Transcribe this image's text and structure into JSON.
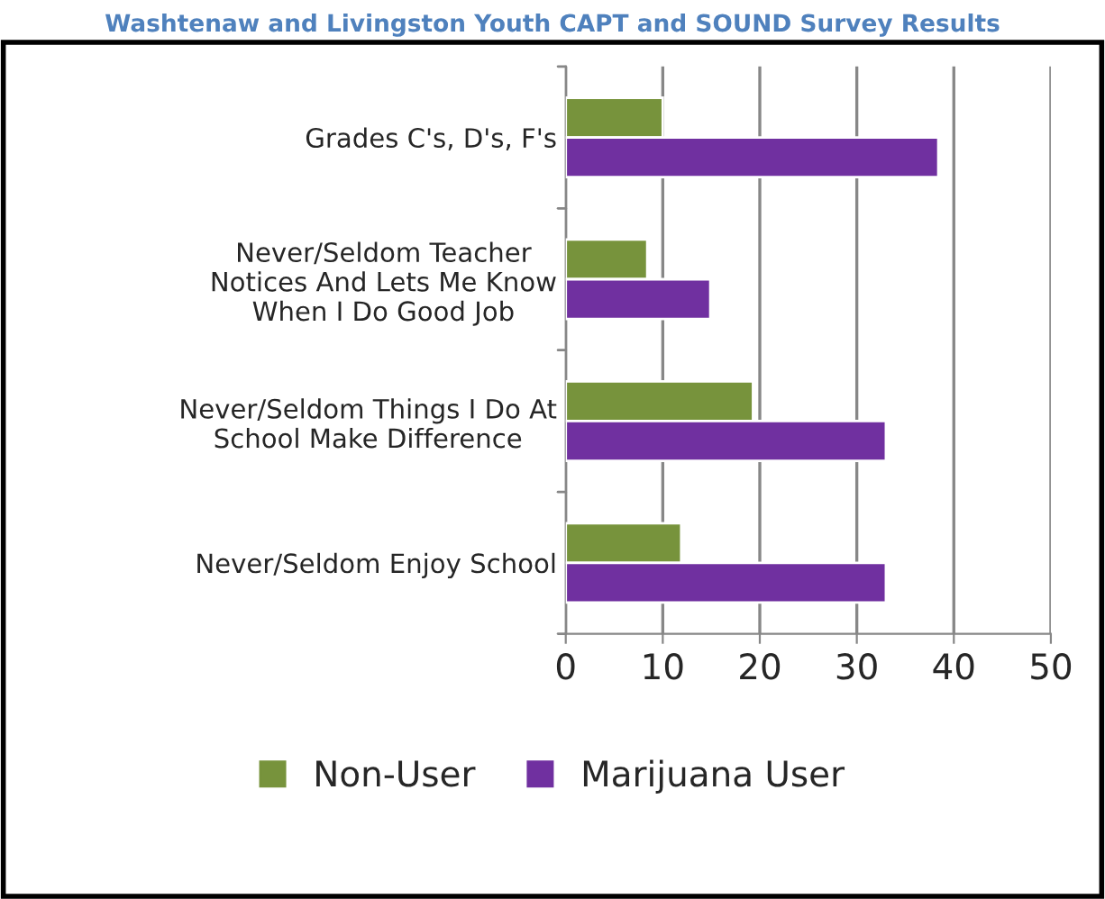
{
  "chart_data": {
    "type": "bar",
    "orientation": "horizontal",
    "title": "Washtenaw and Livingston Youth CAPT and SOUND Survey Results",
    "categories": [
      "Grades C's, D's, F's",
      "Never/Seldom Teacher\nNotices And Lets Me Know\nWhen I Do Good Job",
      "Never/Seldom Things I Do At\nSchool Make Difference",
      "Never/Seldom Enjoy School"
    ],
    "series": [
      {
        "name": "Non-User",
        "color": "#77933c",
        "values": [
          10,
          8.4,
          19.3,
          11.9
        ]
      },
      {
        "name": "Marijuana User",
        "color": "#7030a0",
        "values": [
          38.4,
          14.9,
          33.0,
          33.0
        ]
      }
    ],
    "xlim": [
      0,
      50
    ],
    "xticks": [
      0,
      10,
      20,
      30,
      40,
      50
    ],
    "grid": "x",
    "legend": "bottom"
  }
}
